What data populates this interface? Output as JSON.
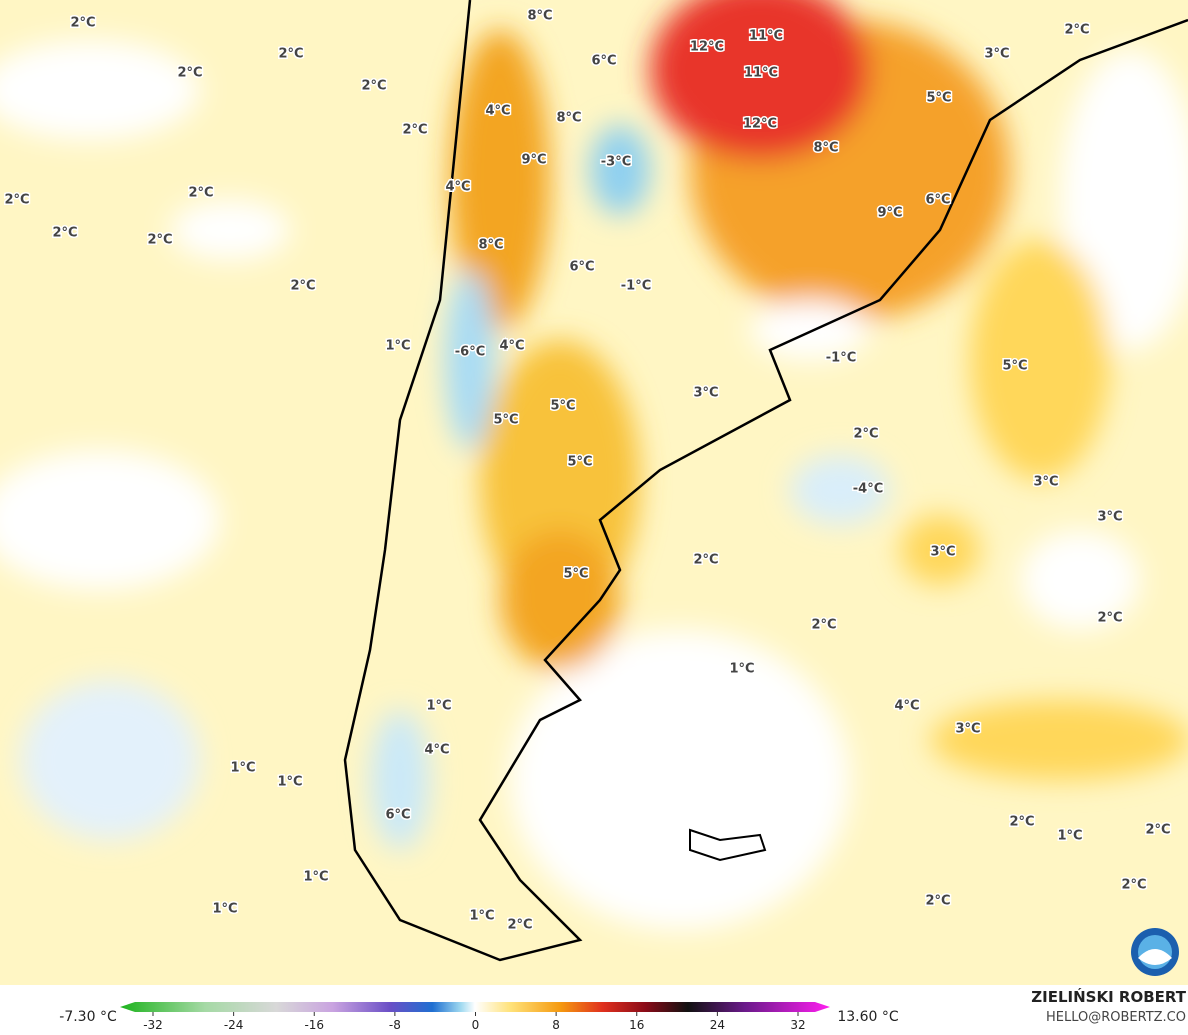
{
  "map": {
    "labels": [
      "2°C",
      "2°C",
      "2°C",
      "8°C",
      "12°C",
      "11°C",
      "2°C",
      "3°C",
      "2°C",
      "6°C",
      "11°C",
      "2°C",
      "4°C",
      "8°C",
      "5°C",
      "12°C",
      "8°C",
      "-3°C",
      "9°C",
      "2°C",
      "2°C",
      "4°C",
      "2°C",
      "2°C",
      "9°C",
      "6°C",
      "8°C",
      "6°C",
      "2°C",
      "-1°C",
      "1°C",
      "4°C",
      "-6°C",
      "-1°C",
      "5°C",
      "3°C",
      "5°C",
      "5°C",
      "2°C",
      "5°C",
      "-4°C",
      "3°C",
      "3°C",
      "3°C",
      "2°C",
      "5°C",
      "2°C",
      "2°C",
      "1°C",
      "4°C",
      "3°C",
      "1°C",
      "4°C",
      "1°C",
      "1°C",
      "6°C",
      "2°C",
      "1°C",
      "2°C",
      "1°C",
      "2°C",
      "1°C",
      "2°C",
      "1°C",
      "2°C"
    ],
    "colorbar": {
      "min_label": "-7.30 °C",
      "max_label": "13.60 °C",
      "ticks": [
        -32,
        -24,
        -16,
        -8,
        0,
        8,
        16,
        24,
        32
      ]
    },
    "credit": {
      "author": "ZIELIŃSKI ROBERT",
      "contact": "HELLO@ROBERTZ.CO"
    }
  }
}
